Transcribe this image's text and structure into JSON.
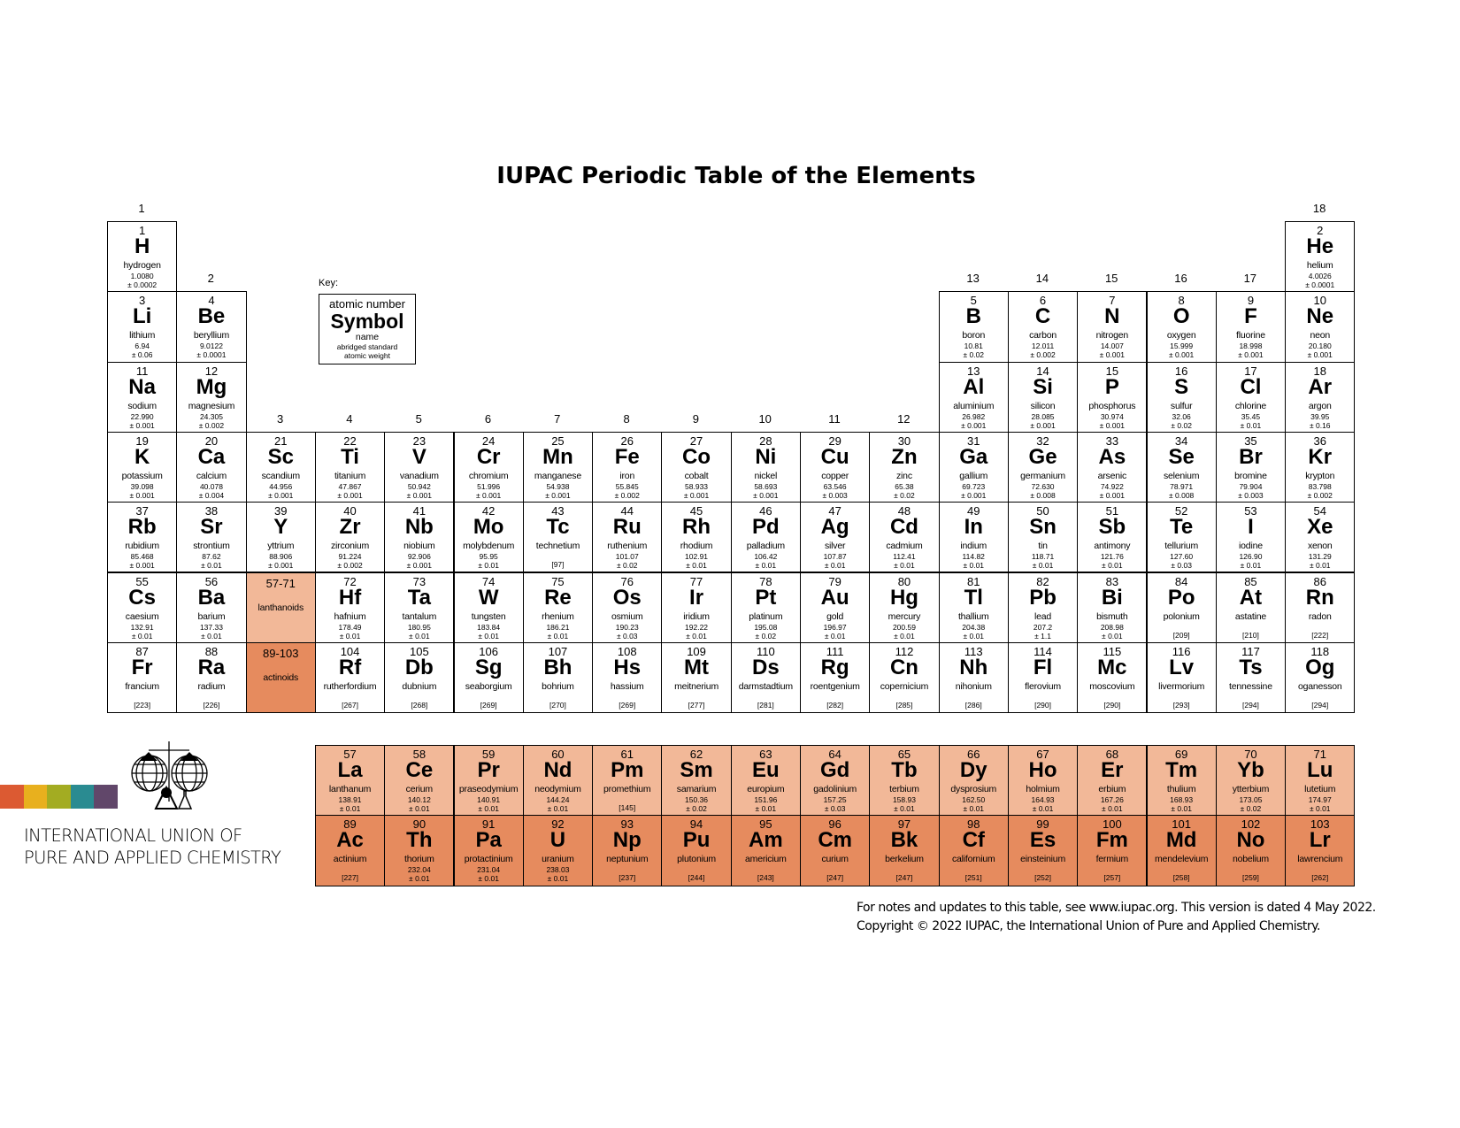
{
  "title": "IUPAC Periodic Table of the Elements",
  "group_labels": [
    "1",
    "2",
    "3",
    "4",
    "5",
    "6",
    "7",
    "8",
    "9",
    "10",
    "11",
    "12",
    "13",
    "14",
    "15",
    "16",
    "17",
    "18"
  ],
  "key": {
    "label": "Key:",
    "atomic_number": "atomic number",
    "symbol": "Symbol",
    "name": "name",
    "weight_line1": "abridged standard",
    "weight_line2": "atomic weight"
  },
  "lanthanoids_cell": {
    "range": "57-71",
    "label": "lanthanoids"
  },
  "actinoids_cell": {
    "range": "89-103",
    "label": "actinoids"
  },
  "colors": {
    "lanthanoids": "#f2b898",
    "actinoids": "#e68b5e",
    "logo_bars": [
      "#dc5a32",
      "#e8b01e",
      "#a3ac22",
      "#2a8b91",
      "#61476a"
    ]
  },
  "organization": {
    "line1": "INTERNATIONAL UNION OF",
    "line2": "PURE AND APPLIED CHEMISTRY"
  },
  "footer": {
    "line1": "For notes and updates to this table, see www.iupac.org. This version is dated 4 May 2022.",
    "line2": "Copyright © 2022 IUPAC, the International Union of Pure and Applied Chemistry."
  },
  "elements": [
    {
      "z": "1",
      "symbol": "H",
      "name": "hydrogen",
      "weight": "1.0080",
      "uncertainty": "± 0.0002"
    },
    {
      "z": "2",
      "symbol": "He",
      "name": "helium",
      "weight": "4.0026",
      "uncertainty": "± 0.0001"
    },
    {
      "z": "3",
      "symbol": "Li",
      "name": "lithium",
      "weight": "6.94",
      "uncertainty": "± 0.06"
    },
    {
      "z": "4",
      "symbol": "Be",
      "name": "beryllium",
      "weight": "9.0122",
      "uncertainty": "± 0.0001"
    },
    {
      "z": "5",
      "symbol": "B",
      "name": "boron",
      "weight": "10.81",
      "uncertainty": "± 0.02"
    },
    {
      "z": "6",
      "symbol": "C",
      "name": "carbon",
      "weight": "12.011",
      "uncertainty": "± 0.002"
    },
    {
      "z": "7",
      "symbol": "N",
      "name": "nitrogen",
      "weight": "14.007",
      "uncertainty": "± 0.001"
    },
    {
      "z": "8",
      "symbol": "O",
      "name": "oxygen",
      "weight": "15.999",
      "uncertainty": "± 0.001"
    },
    {
      "z": "9",
      "symbol": "F",
      "name": "fluorine",
      "weight": "18.998",
      "uncertainty": "± 0.001"
    },
    {
      "z": "10",
      "symbol": "Ne",
      "name": "neon",
      "weight": "20.180",
      "uncertainty": "± 0.001"
    },
    {
      "z": "11",
      "symbol": "Na",
      "name": "sodium",
      "weight": "22.990",
      "uncertainty": "± 0.001"
    },
    {
      "z": "12",
      "symbol": "Mg",
      "name": "magnesium",
      "weight": "24.305",
      "uncertainty": "± 0.002"
    },
    {
      "z": "13",
      "symbol": "Al",
      "name": "aluminium",
      "weight": "26.982",
      "uncertainty": "± 0.001"
    },
    {
      "z": "14",
      "symbol": "Si",
      "name": "silicon",
      "weight": "28.085",
      "uncertainty": "± 0.001"
    },
    {
      "z": "15",
      "symbol": "P",
      "name": "phosphorus",
      "weight": "30.974",
      "uncertainty": "± 0.001"
    },
    {
      "z": "16",
      "symbol": "S",
      "name": "sulfur",
      "weight": "32.06",
      "uncertainty": "± 0.02"
    },
    {
      "z": "17",
      "symbol": "Cl",
      "name": "chlorine",
      "weight": "35.45",
      "uncertainty": "± 0.01"
    },
    {
      "z": "18",
      "symbol": "Ar",
      "name": "argon",
      "weight": "39.95",
      "uncertainty": "± 0.16"
    },
    {
      "z": "19",
      "symbol": "K",
      "name": "potassium",
      "weight": "39.098",
      "uncertainty": "± 0.001"
    },
    {
      "z": "20",
      "symbol": "Ca",
      "name": "calcium",
      "weight": "40.078",
      "uncertainty": "± 0.004"
    },
    {
      "z": "21",
      "symbol": "Sc",
      "name": "scandium",
      "weight": "44.956",
      "uncertainty": "± 0.001"
    },
    {
      "z": "22",
      "symbol": "Ti",
      "name": "titanium",
      "weight": "47.867",
      "uncertainty": "± 0.001"
    },
    {
      "z": "23",
      "symbol": "V",
      "name": "vanadium",
      "weight": "50.942",
      "uncertainty": "± 0.001"
    },
    {
      "z": "24",
      "symbol": "Cr",
      "name": "chromium",
      "weight": "51.996",
      "uncertainty": "± 0.001"
    },
    {
      "z": "25",
      "symbol": "Mn",
      "name": "manganese",
      "weight": "54.938",
      "uncertainty": "± 0.001"
    },
    {
      "z": "26",
      "symbol": "Fe",
      "name": "iron",
      "weight": "55.845",
      "uncertainty": "± 0.002"
    },
    {
      "z": "27",
      "symbol": "Co",
      "name": "cobalt",
      "weight": "58.933",
      "uncertainty": "± 0.001"
    },
    {
      "z": "28",
      "symbol": "Ni",
      "name": "nickel",
      "weight": "58.693",
      "uncertainty": "± 0.001"
    },
    {
      "z": "29",
      "symbol": "Cu",
      "name": "copper",
      "weight": "63.546",
      "uncertainty": "± 0.003"
    },
    {
      "z": "30",
      "symbol": "Zn",
      "name": "zinc",
      "weight": "65.38",
      "uncertainty": "± 0.02"
    },
    {
      "z": "31",
      "symbol": "Ga",
      "name": "gallium",
      "weight": "69.723",
      "uncertainty": "± 0.001"
    },
    {
      "z": "32",
      "symbol": "Ge",
      "name": "germanium",
      "weight": "72.630",
      "uncertainty": "± 0.008"
    },
    {
      "z": "33",
      "symbol": "As",
      "name": "arsenic",
      "weight": "74.922",
      "uncertainty": "± 0.001"
    },
    {
      "z": "34",
      "symbol": "Se",
      "name": "selenium",
      "weight": "78.971",
      "uncertainty": "± 0.008"
    },
    {
      "z": "35",
      "symbol": "Br",
      "name": "bromine",
      "weight": "79.904",
      "uncertainty": "± 0.003"
    },
    {
      "z": "36",
      "symbol": "Kr",
      "name": "krypton",
      "weight": "83.798",
      "uncertainty": "± 0.002"
    },
    {
      "z": "37",
      "symbol": "Rb",
      "name": "rubidium",
      "weight": "85.468",
      "uncertainty": "± 0.001"
    },
    {
      "z": "38",
      "symbol": "Sr",
      "name": "strontium",
      "weight": "87.62",
      "uncertainty": "± 0.01"
    },
    {
      "z": "39",
      "symbol": "Y",
      "name": "yttrium",
      "weight": "88.906",
      "uncertainty": "± 0.001"
    },
    {
      "z": "40",
      "symbol": "Zr",
      "name": "zirconium",
      "weight": "91.224",
      "uncertainty": "± 0.002"
    },
    {
      "z": "41",
      "symbol": "Nb",
      "name": "niobium",
      "weight": "92.906",
      "uncertainty": "± 0.001"
    },
    {
      "z": "42",
      "symbol": "Mo",
      "name": "molybdenum",
      "weight": "95.95",
      "uncertainty": "± 0.01"
    },
    {
      "z": "43",
      "symbol": "Tc",
      "name": "technetium",
      "weight": "[97]",
      "uncertainty": ""
    },
    {
      "z": "44",
      "symbol": "Ru",
      "name": "ruthenium",
      "weight": "101.07",
      "uncertainty": "± 0.02"
    },
    {
      "z": "45",
      "symbol": "Rh",
      "name": "rhodium",
      "weight": "102.91",
      "uncertainty": "± 0.01"
    },
    {
      "z": "46",
      "symbol": "Pd",
      "name": "palladium",
      "weight": "106.42",
      "uncertainty": "± 0.01"
    },
    {
      "z": "47",
      "symbol": "Ag",
      "name": "silver",
      "weight": "107.87",
      "uncertainty": "± 0.01"
    },
    {
      "z": "48",
      "symbol": "Cd",
      "name": "cadmium",
      "weight": "112.41",
      "uncertainty": "± 0.01"
    },
    {
      "z": "49",
      "symbol": "In",
      "name": "indium",
      "weight": "114.82",
      "uncertainty": "± 0.01"
    },
    {
      "z": "50",
      "symbol": "Sn",
      "name": "tin",
      "weight": "118.71",
      "uncertainty": "± 0.01"
    },
    {
      "z": "51",
      "symbol": "Sb",
      "name": "antimony",
      "weight": "121.76",
      "uncertainty": "± 0.01"
    },
    {
      "z": "52",
      "symbol": "Te",
      "name": "tellurium",
      "weight": "127.60",
      "uncertainty": "± 0.03"
    },
    {
      "z": "53",
      "symbol": "I",
      "name": "iodine",
      "weight": "126.90",
      "uncertainty": "± 0.01"
    },
    {
      "z": "54",
      "symbol": "Xe",
      "name": "xenon",
      "weight": "131.29",
      "uncertainty": "± 0.01"
    },
    {
      "z": "55",
      "symbol": "Cs",
      "name": "caesium",
      "weight": "132.91",
      "uncertainty": "± 0.01"
    },
    {
      "z": "56",
      "symbol": "Ba",
      "name": "barium",
      "weight": "137.33",
      "uncertainty": "± 0.01"
    },
    {
      "z": "57",
      "symbol": "La",
      "name": "lanthanum",
      "weight": "138.91",
      "uncertainty": "± 0.01"
    },
    {
      "z": "58",
      "symbol": "Ce",
      "name": "cerium",
      "weight": "140.12",
      "uncertainty": "± 0.01"
    },
    {
      "z": "59",
      "symbol": "Pr",
      "name": "praseodymium",
      "weight": "140.91",
      "uncertainty": "± 0.01"
    },
    {
      "z": "60",
      "symbol": "Nd",
      "name": "neodymium",
      "weight": "144.24",
      "uncertainty": "± 0.01"
    },
    {
      "z": "61",
      "symbol": "Pm",
      "name": "promethium",
      "weight": "[145]",
      "uncertainty": ""
    },
    {
      "z": "62",
      "symbol": "Sm",
      "name": "samarium",
      "weight": "150.36",
      "uncertainty": "± 0.02"
    },
    {
      "z": "63",
      "symbol": "Eu",
      "name": "europium",
      "weight": "151.96",
      "uncertainty": "± 0.01"
    },
    {
      "z": "64",
      "symbol": "Gd",
      "name": "gadolinium",
      "weight": "157.25",
      "uncertainty": "± 0.03"
    },
    {
      "z": "65",
      "symbol": "Tb",
      "name": "terbium",
      "weight": "158.93",
      "uncertainty": "± 0.01"
    },
    {
      "z": "66",
      "symbol": "Dy",
      "name": "dysprosium",
      "weight": "162.50",
      "uncertainty": "± 0.01"
    },
    {
      "z": "67",
      "symbol": "Ho",
      "name": "holmium",
      "weight": "164.93",
      "uncertainty": "± 0.01"
    },
    {
      "z": "68",
      "symbol": "Er",
      "name": "erbium",
      "weight": "167.26",
      "uncertainty": "± 0.01"
    },
    {
      "z": "69",
      "symbol": "Tm",
      "name": "thulium",
      "weight": "168.93",
      "uncertainty": "± 0.01"
    },
    {
      "z": "70",
      "symbol": "Yb",
      "name": "ytterbium",
      "weight": "173.05",
      "uncertainty": "± 0.02"
    },
    {
      "z": "71",
      "symbol": "Lu",
      "name": "lutetium",
      "weight": "174.97",
      "uncertainty": "± 0.01"
    },
    {
      "z": "72",
      "symbol": "Hf",
      "name": "hafnium",
      "weight": "178.49",
      "uncertainty": "± 0.01"
    },
    {
      "z": "73",
      "symbol": "Ta",
      "name": "tantalum",
      "weight": "180.95",
      "uncertainty": "± 0.01"
    },
    {
      "z": "74",
      "symbol": "W",
      "name": "tungsten",
      "weight": "183.84",
      "uncertainty": "± 0.01"
    },
    {
      "z": "75",
      "symbol": "Re",
      "name": "rhenium",
      "weight": "186.21",
      "uncertainty": "± 0.01"
    },
    {
      "z": "76",
      "symbol": "Os",
      "name": "osmium",
      "weight": "190.23",
      "uncertainty": "± 0.03"
    },
    {
      "z": "77",
      "symbol": "Ir",
      "name": "iridium",
      "weight": "192.22",
      "uncertainty": "± 0.01"
    },
    {
      "z": "78",
      "symbol": "Pt",
      "name": "platinum",
      "weight": "195.08",
      "uncertainty": "± 0.02"
    },
    {
      "z": "79",
      "symbol": "Au",
      "name": "gold",
      "weight": "196.97",
      "uncertainty": "± 0.01"
    },
    {
      "z": "80",
      "symbol": "Hg",
      "name": "mercury",
      "weight": "200.59",
      "uncertainty": "± 0.01"
    },
    {
      "z": "81",
      "symbol": "Tl",
      "name": "thallium",
      "weight": "204.38",
      "uncertainty": "± 0.01"
    },
    {
      "z": "82",
      "symbol": "Pb",
      "name": "lead",
      "weight": "207.2",
      "uncertainty": "± 1.1"
    },
    {
      "z": "83",
      "symbol": "Bi",
      "name": "bismuth",
      "weight": "208.98",
      "uncertainty": "± 0.01"
    },
    {
      "z": "84",
      "symbol": "Po",
      "name": "polonium",
      "weight": "[209]",
      "uncertainty": ""
    },
    {
      "z": "85",
      "symbol": "At",
      "name": "astatine",
      "weight": "[210]",
      "uncertainty": ""
    },
    {
      "z": "86",
      "symbol": "Rn",
      "name": "radon",
      "weight": "[222]",
      "uncertainty": ""
    },
    {
      "z": "87",
      "symbol": "Fr",
      "name": "francium",
      "weight": "[223]",
      "uncertainty": ""
    },
    {
      "z": "88",
      "symbol": "Ra",
      "name": "radium",
      "weight": "[226]",
      "uncertainty": ""
    },
    {
      "z": "89",
      "symbol": "Ac",
      "name": "actinium",
      "weight": "[227]",
      "uncertainty": ""
    },
    {
      "z": "90",
      "symbol": "Th",
      "name": "thorium",
      "weight": "232.04",
      "uncertainty": "± 0.01"
    },
    {
      "z": "91",
      "symbol": "Pa",
      "name": "protactinium",
      "weight": "231.04",
      "uncertainty": "± 0.01"
    },
    {
      "z": "92",
      "symbol": "U",
      "name": "uranium",
      "weight": "238.03",
      "uncertainty": "± 0.01"
    },
    {
      "z": "93",
      "symbol": "Np",
      "name": "neptunium",
      "weight": "[237]",
      "uncertainty": ""
    },
    {
      "z": "94",
      "symbol": "Pu",
      "name": "plutonium",
      "weight": "[244]",
      "uncertainty": ""
    },
    {
      "z": "95",
      "symbol": "Am",
      "name": "americium",
      "weight": "[243]",
      "uncertainty": ""
    },
    {
      "z": "96",
      "symbol": "Cm",
      "name": "curium",
      "weight": "[247]",
      "uncertainty": ""
    },
    {
      "z": "97",
      "symbol": "Bk",
      "name": "berkelium",
      "weight": "[247]",
      "uncertainty": ""
    },
    {
      "z": "98",
      "symbol": "Cf",
      "name": "californium",
      "weight": "[251]",
      "uncertainty": ""
    },
    {
      "z": "99",
      "symbol": "Es",
      "name": "einsteinium",
      "weight": "[252]",
      "uncertainty": ""
    },
    {
      "z": "100",
      "symbol": "Fm",
      "name": "fermium",
      "weight": "[257]",
      "uncertainty": ""
    },
    {
      "z": "101",
      "symbol": "Md",
      "name": "mendelevium",
      "weight": "[258]",
      "uncertainty": ""
    },
    {
      "z": "102",
      "symbol": "No",
      "name": "nobelium",
      "weight": "[259]",
      "uncertainty": ""
    },
    {
      "z": "103",
      "symbol": "Lr",
      "name": "lawrencium",
      "weight": "[262]",
      "uncertainty": ""
    },
    {
      "z": "104",
      "symbol": "Rf",
      "name": "rutherfordium",
      "weight": "[267]",
      "uncertainty": ""
    },
    {
      "z": "105",
      "symbol": "Db",
      "name": "dubnium",
      "weight": "[268]",
      "uncertainty": ""
    },
    {
      "z": "106",
      "symbol": "Sg",
      "name": "seaborgium",
      "weight": "[269]",
      "uncertainty": ""
    },
    {
      "z": "107",
      "symbol": "Bh",
      "name": "bohrium",
      "weight": "[270]",
      "uncertainty": ""
    },
    {
      "z": "108",
      "symbol": "Hs",
      "name": "hassium",
      "weight": "[269]",
      "uncertainty": ""
    },
    {
      "z": "109",
      "symbol": "Mt",
      "name": "meitnerium",
      "weight": "[277]",
      "uncertainty": ""
    },
    {
      "z": "110",
      "symbol": "Ds",
      "name": "darmstadtium",
      "weight": "[281]",
      "uncertainty": ""
    },
    {
      "z": "111",
      "symbol": "Rg",
      "name": "roentgenium",
      "weight": "[282]",
      "uncertainty": ""
    },
    {
      "z": "112",
      "symbol": "Cn",
      "name": "copernicium",
      "weight": "[285]",
      "uncertainty": ""
    },
    {
      "z": "113",
      "symbol": "Nh",
      "name": "nihonium",
      "weight": "[286]",
      "uncertainty": ""
    },
    {
      "z": "114",
      "symbol": "Fl",
      "name": "flerovium",
      "weight": "[290]",
      "uncertainty": ""
    },
    {
      "z": "115",
      "symbol": "Mc",
      "name": "moscovium",
      "weight": "[290]",
      "uncertainty": ""
    },
    {
      "z": "116",
      "symbol": "Lv",
      "name": "livermorium",
      "weight": "[293]",
      "uncertainty": ""
    },
    {
      "z": "117",
      "symbol": "Ts",
      "name": "tennessine",
      "weight": "[294]",
      "uncertainty": ""
    },
    {
      "z": "118",
      "symbol": "Og",
      "name": "oganesson",
      "weight": "[294]",
      "uncertainty": ""
    }
  ]
}
